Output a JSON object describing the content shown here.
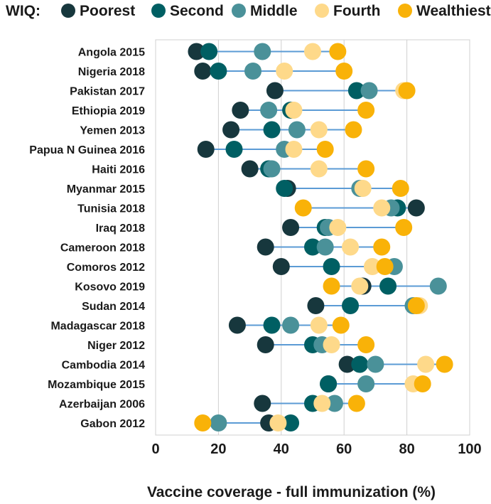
{
  "chart_data": {
    "type": "dot-plot",
    "legend": {
      "title": "WIQ:",
      "placement": "top",
      "entries": [
        {
          "name": "Poorest",
          "color": "#17373d"
        },
        {
          "name": "Second",
          "color": "#005f63"
        },
        {
          "name": "Middle",
          "color": "#4a9199"
        },
        {
          "name": "Fourth",
          "color": "#fed98a"
        },
        {
          "name": "Wealthiest",
          "color": "#f9b208"
        }
      ]
    },
    "xlabel": "Vaccine coverage - full immunization (%)",
    "xlim": [
      0,
      100
    ],
    "xticks": [
      "0",
      "20",
      "40",
      "60",
      "80",
      "100"
    ],
    "grid": true,
    "line_color": "#5b9bd5",
    "categories": [
      "Angola 2015",
      "Nigeria 2018",
      "Pakistan 2017",
      "Ethiopia 2019",
      "Yemen 2013",
      "Papua N Guinea 2016",
      "Haiti 2016",
      "Myanmar 2015",
      "Tunisia 2018",
      "Iraq 2018",
      "Cameroon 2018",
      "Comoros 2012",
      "Kosovo 2019",
      "Sudan 2014",
      "Madagascar 2018",
      "Niger 2012",
      "Cambodia 2014",
      "Mozambique 2015",
      "Azerbaijan 2006",
      "Gabon 2012"
    ],
    "series": [
      {
        "name": "Poorest",
        "values": [
          13,
          15,
          38,
          27,
          24,
          16,
          30,
          42,
          83,
          43,
          35,
          40,
          66,
          51,
          26,
          35,
          61,
          55,
          34,
          36
        ]
      },
      {
        "name": "Second",
        "values": [
          17,
          20,
          64,
          43,
          37,
          25,
          36,
          41,
          77,
          54,
          50,
          56,
          74,
          62,
          37,
          50,
          65,
          55,
          50,
          43
        ]
      },
      {
        "name": "Middle",
        "values": [
          34,
          31,
          68,
          36,
          45,
          41,
          37,
          65,
          75,
          55,
          54,
          76,
          90,
          82,
          43,
          53,
          70,
          67,
          57,
          20
        ]
      },
      {
        "name": "Fourth",
        "values": [
          50,
          41,
          79,
          44,
          52,
          44,
          52,
          66,
          72,
          58,
          62,
          69,
          65,
          84,
          52,
          56,
          86,
          82,
          53,
          39
        ]
      },
      {
        "name": "Wealthiest",
        "values": [
          58,
          60,
          80,
          67,
          63,
          54,
          67,
          78,
          47,
          79,
          72,
          73,
          56,
          83,
          59,
          67,
          92,
          85,
          64,
          15
        ]
      }
    ]
  }
}
